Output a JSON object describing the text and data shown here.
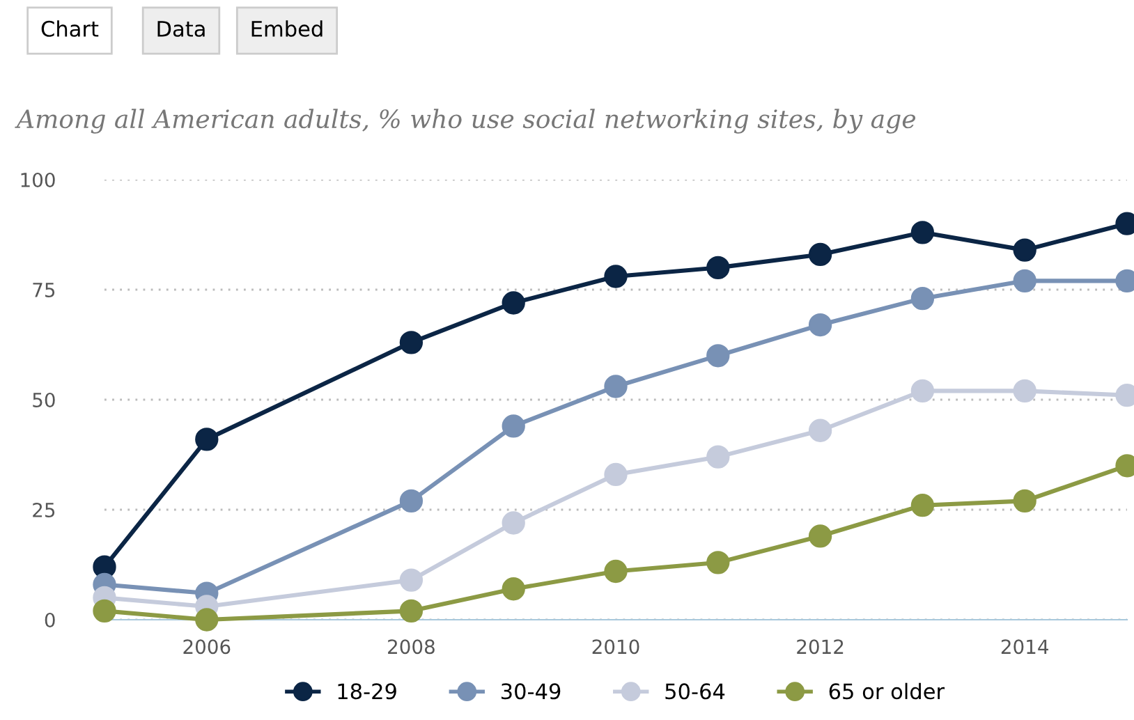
{
  "chart_data": {
    "type": "line",
    "title": "Among all American adults, % who use social networking sites, by age",
    "annotations": [
      "Chart",
      "Data",
      "Embed"
    ],
    "x": [
      2005,
      2006,
      2008,
      2009,
      2010,
      2011,
      2012,
      2013,
      2014,
      2015
    ],
    "series": [
      {
        "name": "18-29",
        "color": "#0b2545",
        "values": [
          12,
          41,
          63,
          72,
          78,
          80,
          83,
          88,
          84,
          90
        ]
      },
      {
        "name": "30-49",
        "color": "#7891b5",
        "values": [
          8,
          6,
          27,
          44,
          53,
          60,
          67,
          73,
          77,
          77
        ]
      },
      {
        "name": "50-64",
        "color": "#c5cbdc",
        "values": [
          5,
          3,
          9,
          22,
          33,
          37,
          43,
          52,
          52,
          51
        ]
      },
      {
        "name": "65 or older",
        "color": "#8c9a44",
        "values": [
          2,
          0,
          2,
          7,
          11,
          13,
          19,
          26,
          27,
          35
        ]
      }
    ],
    "xlim": [
      2005,
      2015
    ],
    "xticks": [
      2006,
      2008,
      2010,
      2012,
      2014
    ],
    "ylim": [
      0,
      100
    ],
    "yticks": [
      0,
      25,
      50,
      75,
      100
    ],
    "grid": "y",
    "legend": "bottom",
    "marker": "circle",
    "line_style": "solid"
  }
}
